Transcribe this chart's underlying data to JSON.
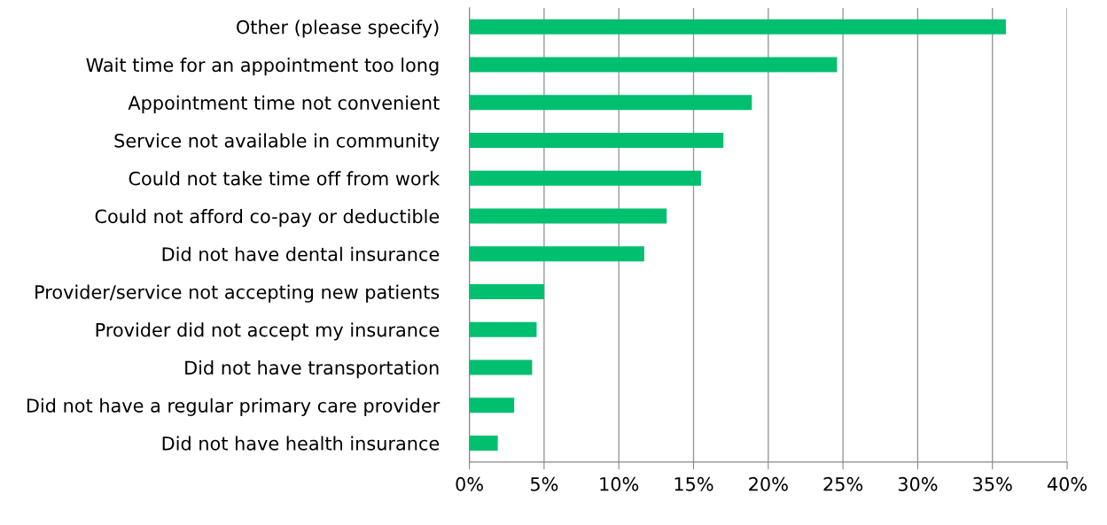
{
  "chart_data": {
    "type": "bar",
    "orientation": "horizontal",
    "categories": [
      "Other (please specify)",
      "Wait time for an appointment too long",
      "Appointment time not convenient",
      "Service not available in community",
      "Could not take time off from work",
      "Could not afford co-pay or deductible",
      "Did not have dental insurance",
      "Provider/service not accepting new patients",
      "Provider did not accept my insurance",
      "Did not have transportation",
      "Did not have a regular primary care provider",
      "Did not have health insurance"
    ],
    "values": [
      35.9,
      24.6,
      18.9,
      17.0,
      15.5,
      13.2,
      11.7,
      5.0,
      4.5,
      4.2,
      3.0,
      1.9
    ],
    "color": "#00bf6f",
    "xlim": [
      0,
      40
    ],
    "xticks": [
      {
        "value": 0,
        "label": "0%"
      },
      {
        "value": 5,
        "label": "5%"
      },
      {
        "value": 10,
        "label": "10%"
      },
      {
        "value": 15,
        "label": "15%"
      },
      {
        "value": 20,
        "label": "20%"
      },
      {
        "value": 25,
        "label": "25%"
      },
      {
        "value": 30,
        "label": "30%"
      },
      {
        "value": 35,
        "label": "35%"
      },
      {
        "value": 40,
        "label": "40%"
      }
    ],
    "grid": "x"
  }
}
